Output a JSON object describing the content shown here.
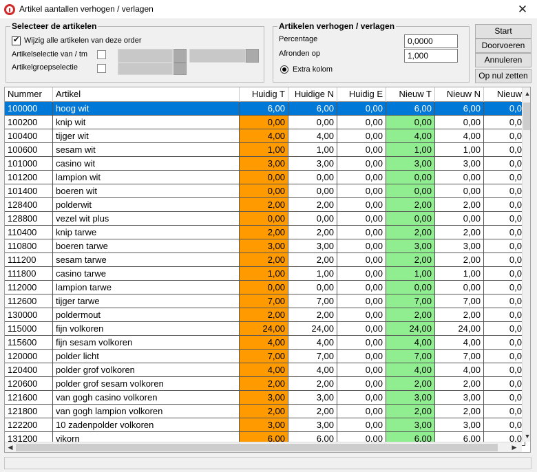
{
  "window": {
    "title": "Artikel aantallen verhogen / verlagen"
  },
  "select_group": {
    "title": "Selecteer de artikelen",
    "all_items_label": "Wijzig alle artikelen van deze order",
    "range_label": "Artikelselectie van / tm",
    "group_label": "Artikelgroepselectie"
  },
  "adjust_group": {
    "title": "Artikelen verhogen / verlagen",
    "percentage_label": "Percentage",
    "percentage_value": "0,0000",
    "round_label": "Afronden op",
    "round_value": "1,000",
    "extra_column_label": "Extra kolom"
  },
  "buttons": {
    "start": "Start",
    "proceed": "Doorvoeren",
    "cancel": "Annuleren",
    "reset": "Op nul zetten"
  },
  "table": {
    "columns": [
      "Nummer",
      "Artikel",
      "Huidig T",
      "Huidige N",
      "Huidig E",
      "Nieuw T",
      "Nieuw N",
      "Nieuw"
    ],
    "rows": [
      [
        "100000",
        "hoog wit",
        "6,00",
        "6,00",
        "0,00",
        "6,00",
        "6,00",
        "0,0"
      ],
      [
        "100200",
        "knip wit",
        "0,00",
        "0,00",
        "0,00",
        "0,00",
        "0,00",
        "0,0"
      ],
      [
        "100400",
        "tijger wit",
        "4,00",
        "4,00",
        "0,00",
        "4,00",
        "4,00",
        "0,0"
      ],
      [
        "100600",
        "sesam wit",
        "1,00",
        "1,00",
        "0,00",
        "1,00",
        "1,00",
        "0,0"
      ],
      [
        "101000",
        "casino wit",
        "3,00",
        "3,00",
        "0,00",
        "3,00",
        "3,00",
        "0,0"
      ],
      [
        "101200",
        "lampion wit",
        "0,00",
        "0,00",
        "0,00",
        "0,00",
        "0,00",
        "0,0"
      ],
      [
        "101400",
        "boeren wit",
        "0,00",
        "0,00",
        "0,00",
        "0,00",
        "0,00",
        "0,0"
      ],
      [
        "128400",
        "polderwit",
        "2,00",
        "2,00",
        "0,00",
        "2,00",
        "2,00",
        "0,0"
      ],
      [
        "128800",
        "vezel wit plus",
        "0,00",
        "0,00",
        "0,00",
        "0,00",
        "0,00",
        "0,0"
      ],
      [
        "110400",
        "knip tarwe",
        "2,00",
        "2,00",
        "0,00",
        "2,00",
        "2,00",
        "0,0"
      ],
      [
        "110800",
        "boeren tarwe",
        "3,00",
        "3,00",
        "0,00",
        "3,00",
        "3,00",
        "0,0"
      ],
      [
        "111200",
        "sesam tarwe",
        "2,00",
        "2,00",
        "0,00",
        "2,00",
        "2,00",
        "0,0"
      ],
      [
        "111800",
        "casino tarwe",
        "1,00",
        "1,00",
        "0,00",
        "1,00",
        "1,00",
        "0,0"
      ],
      [
        "112000",
        "lampion tarwe",
        "0,00",
        "0,00",
        "0,00",
        "0,00",
        "0,00",
        "0,0"
      ],
      [
        "112600",
        "tijger tarwe",
        "7,00",
        "7,00",
        "0,00",
        "7,00",
        "7,00",
        "0,0"
      ],
      [
        "130000",
        "poldermout",
        "2,00",
        "2,00",
        "0,00",
        "2,00",
        "2,00",
        "0,0"
      ],
      [
        "115000",
        "fijn volkoren",
        "24,00",
        "24,00",
        "0,00",
        "24,00",
        "24,00",
        "0,0"
      ],
      [
        "115600",
        "fijn sesam volkoren",
        "4,00",
        "4,00",
        "0,00",
        "4,00",
        "4,00",
        "0,0"
      ],
      [
        "120000",
        "polder licht",
        "7,00",
        "7,00",
        "0,00",
        "7,00",
        "7,00",
        "0,0"
      ],
      [
        "120400",
        "polder grof volkoren",
        "4,00",
        "4,00",
        "0,00",
        "4,00",
        "4,00",
        "0,0"
      ],
      [
        "120600",
        "polder grof sesam volkoren",
        "2,00",
        "2,00",
        "0,00",
        "2,00",
        "2,00",
        "0,0"
      ],
      [
        "121600",
        "van gogh casino volkoren",
        "3,00",
        "3,00",
        "0,00",
        "3,00",
        "3,00",
        "0,0"
      ],
      [
        "121800",
        "van gogh lampion volkoren",
        "2,00",
        "2,00",
        "0,00",
        "2,00",
        "2,00",
        "0,0"
      ],
      [
        "122200",
        "10  zadenpolder volkoren",
        "3,00",
        "3,00",
        "0,00",
        "3,00",
        "3,00",
        "0,0"
      ],
      [
        "131200",
        "vikorn",
        "6,00",
        "6,00",
        "0,00",
        "6,00",
        "6,00",
        "0,0"
      ]
    ],
    "selected_row": 0
  },
  "colors": {
    "selection": "#0078d7",
    "current_column": "#ff9a00",
    "new_column": "#90ee90"
  }
}
